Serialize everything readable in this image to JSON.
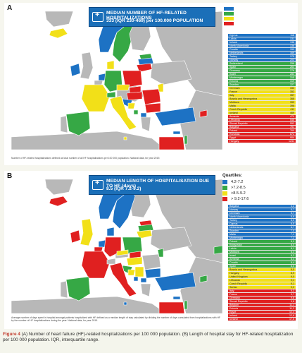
{
  "panel_a": {
    "letter": "A",
    "title_line1": "MEDIAN NUMBER OF HF-RELATED HOSPITALIZATIONS",
    "title_line2": "333 (IQR 230-469) per 100.000 POPULATION",
    "legend_colors": [
      "#1d72c4",
      "#36a845",
      "#f2e018",
      "#e02020"
    ],
    "table": [
      {
        "country": "Cyprus",
        "value": "118",
        "color": "#1d72c4"
      },
      {
        "country": "Latvia",
        "value": "131",
        "color": "#1d72c4"
      },
      {
        "country": "Ireland",
        "value": "136",
        "color": "#1d72c4"
      },
      {
        "country": "North Macedonia",
        "value": "136",
        "color": "#1d72c4"
      },
      {
        "country": "Croatia",
        "value": "150",
        "color": "#1d72c4"
      },
      {
        "country": "Netherlands",
        "value": "169",
        "color": "#1d72c4"
      },
      {
        "country": "Turkey",
        "value": "175",
        "color": "#1d72c4"
      },
      {
        "country": "Norway",
        "value": "203",
        "color": "#1d72c4"
      },
      {
        "country": "Switzerland",
        "value": "258",
        "color": "#36a845"
      },
      {
        "country": "Spain",
        "value": "264",
        "color": "#36a845"
      },
      {
        "country": "Germany",
        "value": "276",
        "color": "#36a845"
      },
      {
        "country": "Israel",
        "value": "284",
        "color": "#36a845"
      },
      {
        "country": "Montenegro",
        "value": "315",
        "color": "#36a845"
      },
      {
        "country": "Estonia",
        "value": "319",
        "color": "#36a845"
      },
      {
        "country": "Sweden",
        "value": "327",
        "color": "#36a845"
      },
      {
        "country": "Denmark",
        "value": "333",
        "color": "#f2e018"
      },
      {
        "country": "France",
        "value": "352",
        "color": "#f2e018"
      },
      {
        "country": "Italy",
        "value": "357",
        "color": "#f2e018"
      },
      {
        "country": "Bosnia and Herzegovina",
        "value": "368",
        "color": "#f2e018"
      },
      {
        "country": "Moldova",
        "value": "393",
        "color": "#f2e018"
      },
      {
        "country": "Malta",
        "value": "396",
        "color": "#f2e018"
      },
      {
        "country": "Czech Republic",
        "value": "411",
        "color": "#f2e018"
      },
      {
        "country": "Iceland",
        "value": "469",
        "color": "#f2e018"
      },
      {
        "country": "Armenia",
        "value": "470",
        "color": "#e02020"
      },
      {
        "country": "Lithuania",
        "value": "545",
        "color": "#e02020"
      },
      {
        "country": "Slovak Republic",
        "value": "552",
        "color": "#e02020"
      },
      {
        "country": "Bulgaria",
        "value": "751",
        "color": "#e02020"
      },
      {
        "country": "Poland",
        "value": "760",
        "color": "#e02020"
      },
      {
        "country": "Romania",
        "value": "872",
        "color": "#e02020"
      },
      {
        "country": "Egypt",
        "value": "904",
        "color": "#e02020"
      },
      {
        "country": "Hungary",
        "value": "1241",
        "color": "#e02020"
      }
    ],
    "note": "Number of HF-related hospitalizations defined as total number of all HF hospitalizations per 100 000 population. National data, for year 2019."
  },
  "panel_b": {
    "letter": "B",
    "title_line1": "MEDIAN LENGTH OF HOSPITALISATION DUE TO HF (days)",
    "title_line2": "8.5 (IQR 7.2-9.2)",
    "quartiles_title": "Quartiles:",
    "quartiles": [
      {
        "label": "4.2-7.2",
        "color": "#1d72c4"
      },
      {
        "label": ">7.2-8.5",
        "color": "#36a845"
      },
      {
        "label": ">8.5-9.2",
        "color": "#f2e018"
      },
      {
        "label": "> 9.2-17.6",
        "color": "#e02020"
      }
    ],
    "table": [
      {
        "country": "Bulgaria",
        "value": "4,2",
        "color": "#1d72c4"
      },
      {
        "country": "Norway",
        "value": "5,7",
        "color": "#1d72c4"
      },
      {
        "country": "Denmark",
        "value": "5,7",
        "color": "#1d72c4"
      },
      {
        "country": "North Macedonia",
        "value": "5,9",
        "color": "#1d72c4"
      },
      {
        "country": "Turkey",
        "value": "6,0",
        "color": "#1d72c4"
      },
      {
        "country": "Cyprus",
        "value": "6,5",
        "color": "#1d72c4"
      },
      {
        "country": "Netherlands",
        "value": "6,7",
        "color": "#1d72c4"
      },
      {
        "country": "Sweden",
        "value": "7,0",
        "color": "#1d72c4"
      },
      {
        "country": "Malta",
        "value": "7,1",
        "color": "#1d72c4"
      },
      {
        "country": "Montenegro",
        "value": "7,2",
        "color": "#1d72c4"
      },
      {
        "country": "Poland",
        "value": "8,0",
        "color": "#36a845"
      },
      {
        "country": "Kyrgyzstan",
        "value": "8,0",
        "color": "#36a845"
      },
      {
        "country": "Latvia",
        "value": "8,1",
        "color": "#36a845"
      },
      {
        "country": "Moldova",
        "value": "8,3",
        "color": "#36a845"
      },
      {
        "country": "Israel",
        "value": "8,3",
        "color": "#36a845"
      },
      {
        "country": "Armenia",
        "value": "8,4",
        "color": "#36a845"
      },
      {
        "country": "Croatia",
        "value": "8,4",
        "color": "#36a845"
      },
      {
        "country": "Spain",
        "value": "8,5",
        "color": "#36a845"
      },
      {
        "country": "Bosnia and Herzegovina",
        "value": "8,5",
        "color": "#f2e018"
      },
      {
        "country": "Hungary",
        "value": "8,9",
        "color": "#f2e018"
      },
      {
        "country": "United Kingdom",
        "value": "9,0",
        "color": "#f2e018"
      },
      {
        "country": "Lithuania",
        "value": "9,1",
        "color": "#f2e018"
      },
      {
        "country": "Czech Republic",
        "value": "9,1",
        "color": "#f2e018"
      },
      {
        "country": "Serbia",
        "value": "9,2",
        "color": "#f2e018"
      },
      {
        "country": "Italy",
        "value": "9,3",
        "color": "#e02020"
      },
      {
        "country": "France",
        "value": "9,7",
        "color": "#e02020"
      },
      {
        "country": "Germany",
        "value": "9,8",
        "color": "#e02020"
      },
      {
        "country": "Slovak Republic",
        "value": "9,8",
        "color": "#e02020"
      },
      {
        "country": "Belgium",
        "value": "11,1",
        "color": "#e02020"
      },
      {
        "country": "Estonia",
        "value": "11,2",
        "color": "#e02020"
      },
      {
        "country": "Egypt",
        "value": "12,4",
        "color": "#e02020"
      },
      {
        "country": "Ireland",
        "value": "12,6",
        "color": "#e02020"
      },
      {
        "country": "Iceland",
        "value": "17,6",
        "color": "#e02020"
      }
    ],
    "note": "Average number of days spent in hospital amongst patients hospitalized with HF defined as a median length of stay calculated by dividing the number of days cumulated from hospitalizations with HF by the number of HF hospitalizations during the year. National data, for year 2019."
  },
  "colors": {
    "land_default": "#b8b8b8",
    "water": "#ffffff",
    "title_bg": "#1b6fb8",
    "caption_accent": "#c0392b"
  },
  "caption": {
    "figure_label": "Figure 4",
    "text": "(A) Number of heart failure (HF)-related hospitalizations per 100 000 population. (B) Length of hospital stay for HF-related hospitalization per 100 000 population. IQR, interquartile range."
  }
}
